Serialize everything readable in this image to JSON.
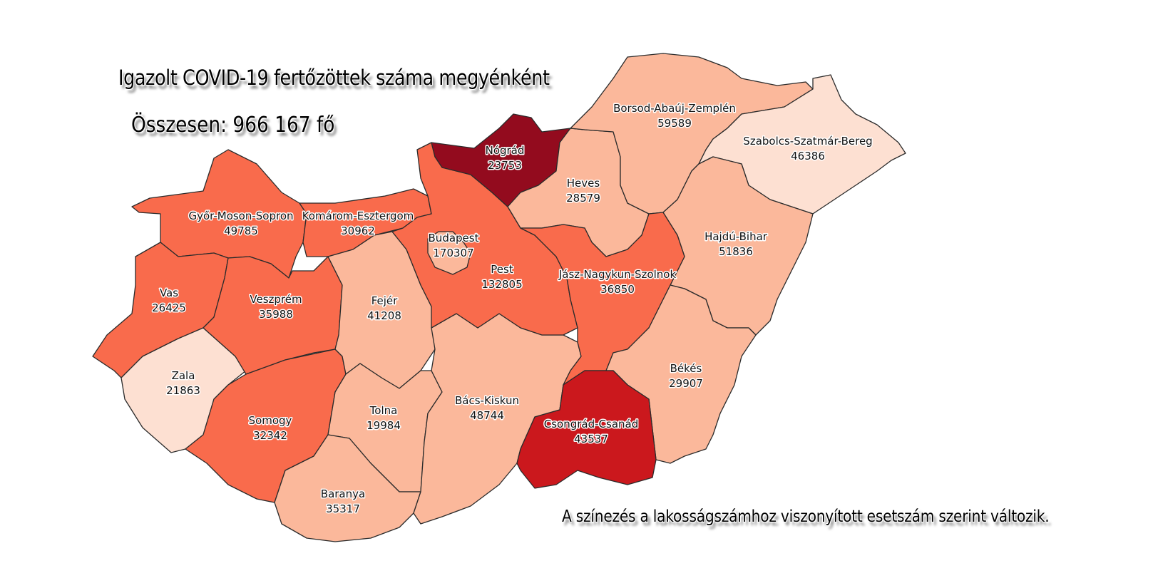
{
  "title": "Igazolt COVID-19 fertőzöttek száma megyénként",
  "total": "Összesen: 966 167 fő",
  "note": "A színezés a lakosságszámhoz viszonyított esetszám szerint változik.",
  "colors": {
    "lightest": "#fde0d2",
    "light": "#fbb89b",
    "medium": "#f96b4c",
    "red": "#cb181d",
    "dark": "#930b1e",
    "border": "#2b2b2b"
  },
  "counties": [
    {
      "name": "Győr-Moson-Sopron",
      "cases": "49785",
      "shade": "medium"
    },
    {
      "name": "Komárom-Esztergom",
      "cases": "30962",
      "shade": "medium"
    },
    {
      "name": "Vas",
      "cases": "26425",
      "shade": "medium"
    },
    {
      "name": "Zala",
      "cases": "21863",
      "shade": "lightest"
    },
    {
      "name": "Veszprém",
      "cases": "35988",
      "shade": "medium"
    },
    {
      "name": "Somogy",
      "cases": "32342",
      "shade": "medium"
    },
    {
      "name": "Fejér",
      "cases": "41208",
      "shade": "light"
    },
    {
      "name": "Tolna",
      "cases": "19984",
      "shade": "light"
    },
    {
      "name": "Baranya",
      "cases": "35317",
      "shade": "light"
    },
    {
      "name": "Bács-Kiskun",
      "cases": "48744",
      "shade": "light"
    },
    {
      "name": "Pest",
      "cases": "132805",
      "shade": "medium"
    },
    {
      "name": "Budapest",
      "cases": "170307",
      "shade": "light"
    },
    {
      "name": "Nógrád",
      "cases": "23753",
      "shade": "dark"
    },
    {
      "name": "Heves",
      "cases": "28579",
      "shade": "light"
    },
    {
      "name": "Borsod-Abaúj-Zemplén",
      "cases": "59589",
      "shade": "light"
    },
    {
      "name": "Szabolcs-Szatmár-Bereg",
      "cases": "46386",
      "shade": "lightest"
    },
    {
      "name": "Hajdú-Bihar",
      "cases": "51836",
      "shade": "light"
    },
    {
      "name": "Jász-Nagykun-Szolnok",
      "cases": "36850",
      "shade": "medium"
    },
    {
      "name": "Békés",
      "cases": "29907",
      "shade": "light"
    },
    {
      "name": "Csongrád-Csanád",
      "cases": "43537",
      "shade": "red"
    }
  ]
}
